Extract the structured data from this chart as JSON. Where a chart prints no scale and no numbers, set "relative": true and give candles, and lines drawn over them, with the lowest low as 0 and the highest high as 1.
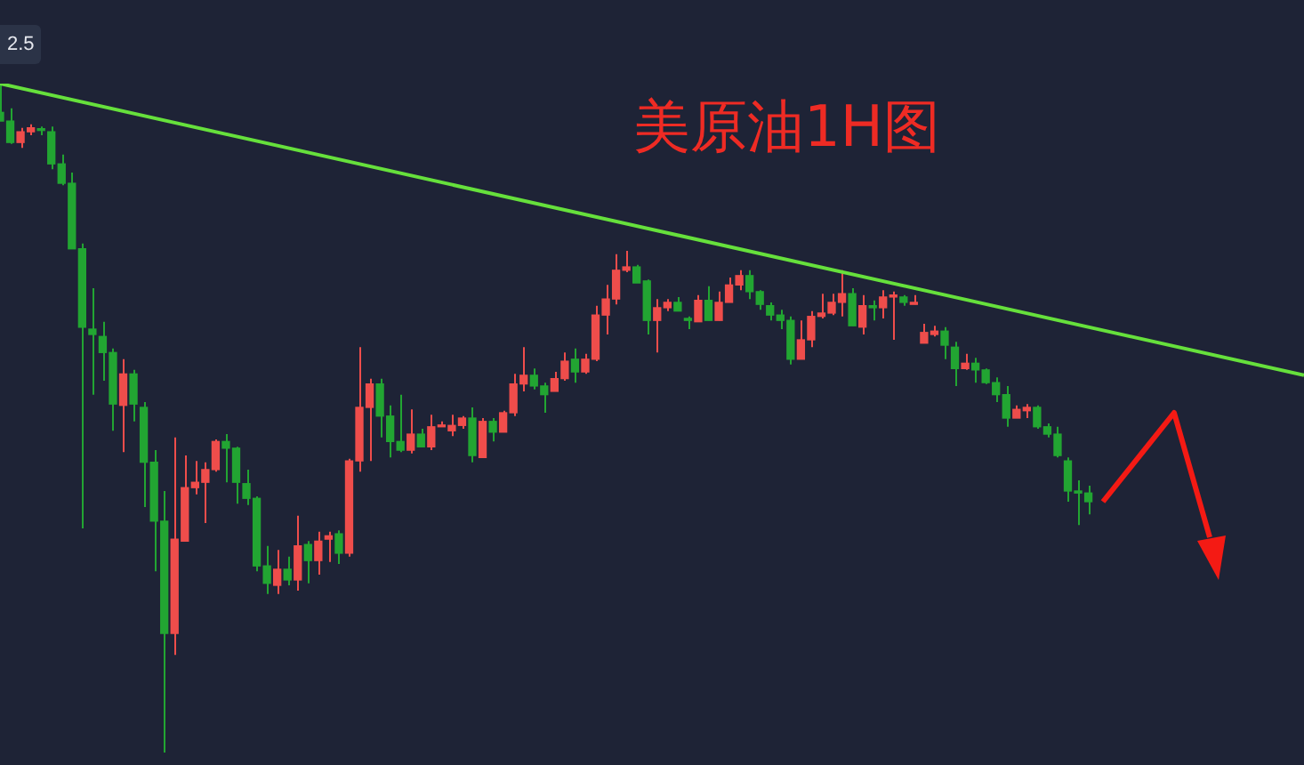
{
  "chart_data": {
    "type": "candlestick",
    "title": "美原油1H图",
    "annotations": [
      "2.5"
    ],
    "relative": true,
    "categories": [
      null,
      null,
      null,
      null,
      null,
      null,
      null,
      null,
      null,
      null,
      null,
      null,
      null,
      null,
      null,
      null,
      null,
      null,
      null,
      null,
      null,
      null,
      null,
      null,
      null,
      null,
      null,
      null,
      null,
      null,
      null,
      null,
      null,
      null,
      null,
      null,
      null,
      null,
      null,
      null,
      null,
      null,
      null,
      null,
      null,
      null,
      null,
      null,
      null,
      null,
      null,
      null,
      null,
      null,
      null,
      null,
      null,
      null,
      null,
      null,
      null,
      null,
      null,
      null,
      null,
      null,
      null,
      null,
      null,
      null,
      null,
      null,
      null,
      null,
      null,
      null,
      null,
      null,
      null,
      null,
      null,
      null,
      null,
      null,
      null,
      null,
      null,
      null,
      null,
      null,
      null,
      null,
      null,
      null,
      null,
      null,
      null,
      null,
      null,
      null,
      null,
      null,
      null,
      null,
      null,
      null,
      null,
      null,
      null,
      null,
      null,
      null,
      null,
      null,
      null,
      null,
      null,
      null,
      null,
      null,
      null,
      null,
      null,
      null,
      null,
      null,
      null,
      null
    ],
    "ohlc": [
      [
        0.957,
        1,
        0.944,
        0.944
      ],
      [
        0.944,
        0.963,
        0.91,
        0.912
      ],
      [
        0.912,
        0.934,
        0.904,
        0.928
      ],
      [
        0.928,
        0.939,
        0.923,
        0.934
      ],
      [
        0.932,
        0.936,
        0.923,
        0.93
      ],
      [
        0.928,
        0.936,
        0.872,
        0.88
      ],
      [
        0.88,
        0.894,
        0.848,
        0.851
      ],
      [
        0.851,
        0.867,
        0.753,
        0.753
      ],
      [
        0.753,
        0.761,
        0.335,
        0.636
      ],
      [
        0.633,
        0.694,
        0.535,
        0.625
      ],
      [
        0.622,
        0.644,
        0.556,
        0.598
      ],
      [
        0.598,
        0.604,
        0.481,
        0.521
      ],
      [
        0.519,
        0.588,
        0.449,
        0.566
      ],
      [
        0.566,
        0.572,
        0.495,
        0.521
      ],
      [
        0.516,
        0.524,
        0.367,
        0.434
      ],
      [
        0.434,
        0.452,
        0.271,
        0.346
      ],
      [
        0.346,
        0.391,
        0,
        0.178
      ],
      [
        0.178,
        0.471,
        0.146,
        0.319
      ],
      [
        0.316,
        0.444,
        0.316,
        0.396
      ],
      [
        0.396,
        0.436,
        0.386,
        0.404
      ],
      [
        0.404,
        0.434,
        0.343,
        0.423
      ],
      [
        0.423,
        0.468,
        0.42,
        0.465
      ],
      [
        0.465,
        0.476,
        0.404,
        0.455
      ],
      [
        0.455,
        0.457,
        0.372,
        0.404
      ],
      [
        0.402,
        0.423,
        0.37,
        0.38
      ],
      [
        0.38,
        0.383,
        0.271,
        0.279
      ],
      [
        0.279,
        0.309,
        0.237,
        0.253
      ],
      [
        0.25,
        0.303,
        0.237,
        0.274
      ],
      [
        0.274,
        0.293,
        0.25,
        0.258
      ],
      [
        0.258,
        0.354,
        0.242,
        0.309
      ],
      [
        0.311,
        0.316,
        0.253,
        0.287
      ],
      [
        0.287,
        0.33,
        0.266,
        0.316
      ],
      [
        0.319,
        0.33,
        0.285,
        0.324
      ],
      [
        0.327,
        0.332,
        0.282,
        0.298
      ],
      [
        0.298,
        0.439,
        0.293,
        0.436
      ],
      [
        0.436,
        0.606,
        0.42,
        0.516
      ],
      [
        0.516,
        0.559,
        0.436,
        0.551
      ],
      [
        0.551,
        0.559,
        0.471,
        0.503
      ],
      [
        0.503,
        0.519,
        0.441,
        0.465
      ],
      [
        0.465,
        0.535,
        0.449,
        0.452
      ],
      [
        0.452,
        0.513,
        0.447,
        0.476
      ],
      [
        0.476,
        0.484,
        0.457,
        0.457
      ],
      [
        0.457,
        0.505,
        0.452,
        0.487
      ],
      [
        0.487,
        0.495,
        0.487,
        0.489
      ],
      [
        0.481,
        0.505,
        0.473,
        0.489
      ],
      [
        0.489,
        0.503,
        0.484,
        0.5
      ],
      [
        0.5,
        0.516,
        0.434,
        0.444
      ],
      [
        0.441,
        0.5,
        0.441,
        0.495
      ],
      [
        0.495,
        0.5,
        0.465,
        0.479
      ],
      [
        0.479,
        0.511,
        0.479,
        0.508
      ],
      [
        0.508,
        0.566,
        0.503,
        0.551
      ],
      [
        0.551,
        0.606,
        0.54,
        0.564
      ],
      [
        0.564,
        0.574,
        0.543,
        0.548
      ],
      [
        0.548,
        0.553,
        0.508,
        0.535
      ],
      [
        0.54,
        0.569,
        0.54,
        0.559
      ],
      [
        0.559,
        0.598,
        0.556,
        0.585
      ],
      [
        0.588,
        0.604,
        0.553,
        0.569
      ],
      [
        0.569,
        0.596,
        0.566,
        0.588
      ],
      [
        0.588,
        0.668,
        0.585,
        0.654
      ],
      [
        0.654,
        0.699,
        0.625,
        0.678
      ],
      [
        0.678,
        0.745,
        0.67,
        0.721
      ],
      [
        0.721,
        0.75,
        0.718,
        0.726
      ],
      [
        0.726,
        0.729,
        0.702,
        0.702
      ],
      [
        0.705,
        0.707,
        0.625,
        0.646
      ],
      [
        0.646,
        0.678,
        0.598,
        0.665
      ],
      [
        0.665,
        0.678,
        0.66,
        0.673
      ],
      [
        0.673,
        0.681,
        0.66,
        0.66
      ],
      [
        0.649,
        0.652,
        0.633,
        0.646
      ],
      [
        0.644,
        0.684,
        0.644,
        0.676
      ],
      [
        0.676,
        0.697,
        0.646,
        0.646
      ],
      [
        0.646,
        0.689,
        0.646,
        0.673
      ],
      [
        0.673,
        0.71,
        0.673,
        0.699
      ],
      [
        0.699,
        0.721,
        0.691,
        0.713
      ],
      [
        0.713,
        0.721,
        0.678,
        0.689
      ],
      [
        0.689,
        0.691,
        0.662,
        0.67
      ],
      [
        0.668,
        0.673,
        0.646,
        0.654
      ],
      [
        0.654,
        0.662,
        0.633,
        0.646
      ],
      [
        0.646,
        0.652,
        0.58,
        0.588
      ],
      [
        0.588,
        0.646,
        0.588,
        0.617
      ],
      [
        0.617,
        0.66,
        0.606,
        0.652
      ],
      [
        0.652,
        0.686,
        0.649,
        0.657
      ],
      [
        0.657,
        0.686,
        0.654,
        0.673
      ],
      [
        0.673,
        0.721,
        0.652,
        0.686
      ],
      [
        0.686,
        0.694,
        0.638,
        0.638
      ],
      [
        0.636,
        0.684,
        0.625,
        0.668
      ],
      [
        0.668,
        0.676,
        0.646,
        0.665
      ],
      [
        0.665,
        0.691,
        0.649,
        0.681
      ],
      [
        0.681,
        0.689,
        0.617,
        0.684
      ],
      [
        0.681,
        0.684,
        0.668,
        0.673
      ],
      [
        0.67,
        0.684,
        0.67,
        0.673
      ],
      [
        0.612,
        0.641,
        0.612,
        0.628
      ],
      [
        0.625,
        0.638,
        0.622,
        0.63
      ],
      [
        0.63,
        0.636,
        0.588,
        0.609
      ],
      [
        0.606,
        0.614,
        0.548,
        0.574
      ],
      [
        0.574,
        0.596,
        0.572,
        0.582
      ],
      [
        0.582,
        0.59,
        0.553,
        0.572
      ],
      [
        0.572,
        0.574,
        0.551,
        0.553
      ],
      [
        0.553,
        0.561,
        0.524,
        0.535
      ],
      [
        0.535,
        0.548,
        0.487,
        0.5
      ],
      [
        0.5,
        0.519,
        0.5,
        0.513
      ],
      [
        0.511,
        0.521,
        0.5,
        0.516
      ],
      [
        0.516,
        0.519,
        0.484,
        0.487
      ],
      [
        0.487,
        0.492,
        0.471,
        0.476
      ],
      [
        0.476,
        0.487,
        0.441,
        0.444
      ],
      [
        0.436,
        0.441,
        0.375,
        0.391
      ],
      [
        0.391,
        0.407,
        0.34,
        0.388
      ],
      [
        0.388,
        0.399,
        0.356,
        0.375
      ],
      null,
      null,
      null,
      null,
      null,
      null,
      null,
      null,
      null,
      null,
      null,
      null,
      null,
      null,
      null,
      null,
      null,
      null,
      null,
      null,
      null
    ],
    "colors": [
      "#22a532",
      "#22a532",
      "#ef4d4b",
      "#ef4d4b",
      "#22a532",
      "#22a532",
      "#22a532",
      "#22a532",
      "#22a532",
      "#22a532",
      "#22a532",
      "#22a532",
      "#ef4d4b",
      "#22a532",
      "#22a532",
      "#22a532",
      "#22a532",
      "#ef4d4b",
      "#ef4d4b",
      "#ef4d4b",
      "#ef4d4b",
      "#ef4d4b",
      "#22a532",
      "#22a532",
      "#22a532",
      "#22a532",
      "#22a532",
      "#ef4d4b",
      "#22a532",
      "#ef4d4b",
      "#22a532",
      "#ef4d4b",
      "#ef4d4b",
      "#22a532",
      "#ef4d4b",
      "#ef4d4b",
      "#ef4d4b",
      "#22a532",
      "#22a532",
      "#22a532",
      "#ef4d4b",
      "#22a532",
      "#ef4d4b",
      "#ef4d4b",
      "#ef4d4b",
      "#ef4d4b",
      "#22a532",
      "#ef4d4b",
      "#22a532",
      "#ef4d4b",
      "#ef4d4b",
      "#ef4d4b",
      "#22a532",
      "#22a532",
      "#ef4d4b",
      "#ef4d4b",
      "#22a532",
      "#ef4d4b",
      "#ef4d4b",
      "#ef4d4b",
      "#ef4d4b",
      "#ef4d4b",
      "#22a532",
      "#22a532",
      "#ef4d4b",
      "#ef4d4b",
      "#22a532",
      "#22a532",
      "#ef4d4b",
      "#22a532",
      "#ef4d4b",
      "#ef4d4b",
      "#ef4d4b",
      "#22a532",
      "#22a532",
      "#22a532",
      "#22a532",
      "#22a532",
      "#ef4d4b",
      "#ef4d4b",
      "#ef4d4b",
      "#ef4d4b",
      "#ef4d4b",
      "#22a532",
      "#ef4d4b",
      "#22a532",
      "#ef4d4b",
      "#ef4d4b",
      "#22a532",
      "#ef4d4b",
      "#ef4d4b",
      "#ef4d4b",
      "#22a532",
      "#22a532",
      "#ef4d4b",
      "#22a532",
      "#22a532",
      "#22a532",
      "#22a532",
      "#ef4d4b",
      "#ef4d4b",
      "#22a532",
      "#22a532",
      "#22a532",
      "#22a532",
      "#22a532",
      "#22a532",
      null,
      null,
      null,
      null,
      null,
      null,
      null,
      null,
      null,
      null,
      null,
      null,
      null,
      null,
      null,
      null,
      null,
      null,
      null,
      null,
      null
    ],
    "series": [
      {
        "type": "line",
        "color": "#66e03c",
        "values": [
          1,
          null,
          null,
          null,
          null,
          null,
          null,
          null,
          null,
          null,
          null,
          null,
          null,
          null,
          null,
          null,
          null,
          null,
          null,
          null,
          null,
          null,
          null,
          null,
          null,
          null,
          null,
          null,
          null,
          null,
          null,
          null,
          null,
          null,
          null,
          null,
          null,
          null,
          null,
          null,
          null,
          null,
          null,
          null,
          null,
          null,
          null,
          null,
          null,
          null,
          null,
          null,
          null,
          null,
          null,
          null,
          null,
          null,
          null,
          null,
          null,
          null,
          null,
          null,
          null,
          null,
          null,
          null,
          null,
          null,
          null,
          null,
          null,
          null,
          null,
          null,
          null,
          null,
          null,
          null,
          null,
          null,
          null,
          null,
          null,
          null,
          null,
          null,
          null,
          null,
          null,
          null,
          null,
          null,
          null,
          null,
          null,
          null,
          null,
          null,
          null,
          null,
          null,
          null,
          null,
          null,
          null,
          null,
          null,
          null,
          null,
          null,
          null,
          null,
          null,
          null,
          null,
          null,
          null,
          null,
          null,
          null,
          null,
          null,
          null,
          null,
          null,
          0.564
        ]
      }
    ]
  }
}
